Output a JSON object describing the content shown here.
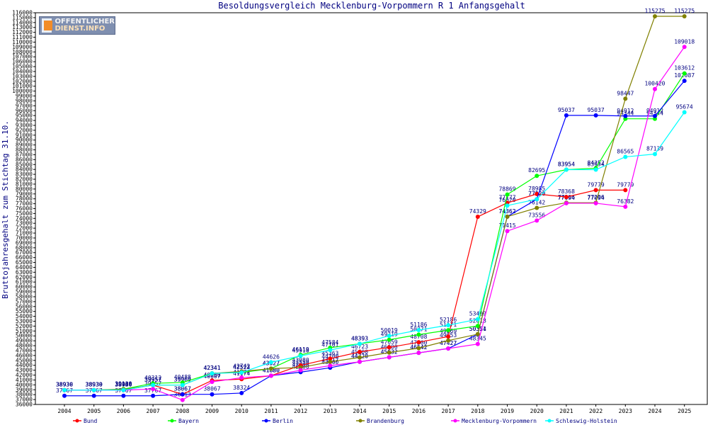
{
  "logo": {
    "line1": "OFFENTLICHER",
    "line2": "DIENST.INFO"
  },
  "chart_data": {
    "type": "line",
    "title": "Besoldungsvergleich Mecklenburg-Vorpommern R 1 Anfangsgehalt",
    "xlabel": "",
    "ylabel": "Bruttojahresgehalt zum Stichtag 31.10.",
    "ylim": [
      36000,
      116000
    ],
    "ytick_step": 1000,
    "grid": false,
    "legend_position": "bottom",
    "categories": [
      "2004",
      "2005",
      "2006",
      "2007",
      "2008",
      "2009",
      "2010",
      "2011",
      "2012",
      "2013",
      "2014",
      "2015",
      "2016",
      "2017",
      "2018",
      "2019",
      "2020",
      "2021",
      "2022",
      "2023",
      "2024",
      "2025"
    ],
    "series": [
      {
        "name": "Bund",
        "color": "#ff0000",
        "values": [
          38930,
          38930,
          38940,
          39957,
          38067,
          40900,
          41174,
          41880,
          43980,
          45363,
          46723,
          47659,
          48708,
          49869,
          74329,
          77177,
          78985,
          78368,
          79779,
          79779,
          null,
          null
        ]
      },
      {
        "name": "Bayern",
        "color": "#00ff00",
        "values": [
          38930,
          38930,
          39138,
          40312,
          40488,
          42341,
          42522,
          43327,
          46119,
          47584,
          48393,
          49219,
          50271,
          51171,
          52018,
          78869,
          82695,
          83954,
          84252,
          94344,
          94344,
          103612
        ]
      },
      {
        "name": "Berlin",
        "color": "#0000ff",
        "values": [
          37767,
          37767,
          37767,
          37767,
          38067,
          38067,
          38324,
          41880,
          42600,
          43500,
          44720,
          45632,
          46542,
          47427,
          50324,
          74362,
          77920,
          95037,
          95037,
          94912,
          94912,
          102087
        ]
      },
      {
        "name": "Brandenburg",
        "color": "#808000",
        "values": [
          38930,
          38930,
          39069,
          39957,
          39969,
          42341,
          42742,
          43327,
          43550,
          44700,
          45600,
          46600,
          47500,
          49053,
          50351,
          74362,
          76142,
          77206,
          77206,
          98447,
          115275,
          115275
        ]
      },
      {
        "name": "Mecklenburg-Vorpommern",
        "color": "#ff00ff",
        "values": [
          38930,
          38930,
          38930,
          39157,
          36913,
          40607,
          41474,
          41880,
          42990,
          43917,
          44720,
          45632,
          46542,
          47427,
          48345,
          71415,
          73556,
          77094,
          77094,
          76382,
          100420,
          109018
        ]
      },
      {
        "name": "Schleswig-Holstein",
        "color": "#00ffff",
        "values": [
          38930,
          38930,
          38930,
          39957,
          39969,
          42341,
          42523,
          44626,
          45910,
          47101,
          48393,
          50019,
          51186,
          52186,
          53409,
          76620,
          77920,
          83954,
          83954,
          86565,
          87139,
          95674
        ]
      }
    ]
  }
}
